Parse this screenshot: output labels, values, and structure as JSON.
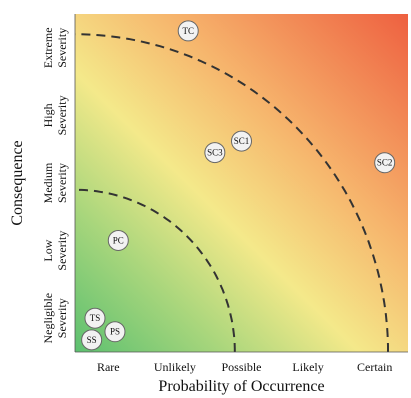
{
  "chart_data": {
    "type": "scatter",
    "title": "",
    "xlabel": "Probability of Occurrence",
    "ylabel": "Consequence",
    "xcategories": [
      "Rare",
      "Unlikely",
      "Possible",
      "Likely",
      "Certain"
    ],
    "ycategories": [
      [
        "Negligible",
        "Severity"
      ],
      [
        "Low",
        "Severity"
      ],
      [
        "Medium",
        "Severity"
      ],
      [
        "High",
        "Severity"
      ],
      [
        "Extreme",
        "Severity"
      ]
    ],
    "xlim": [
      0.5,
      5.5
    ],
    "ylim": [
      0.5,
      5.5
    ],
    "grid": false,
    "background": "risk-gradient",
    "colors": {
      "low_risk": "#5cc070",
      "medium_risk": "#f4e98a",
      "high_risk": "#ee6040",
      "boundary": "#333333"
    },
    "boundaries": [
      {
        "style": "dashed",
        "radius": 2.4
      },
      {
        "style": "dashed",
        "radius": 4.7
      }
    ],
    "points": [
      {
        "label": "TC",
        "x": 2.2,
        "y": 5.25
      },
      {
        "label": "SC1",
        "x": 3.0,
        "y": 3.62
      },
      {
        "label": "SC3",
        "x": 2.6,
        "y": 3.45
      },
      {
        "label": "SC2",
        "x": 5.15,
        "y": 3.3
      },
      {
        "label": "PC",
        "x": 1.15,
        "y": 2.15
      },
      {
        "label": "TS",
        "x": 0.8,
        "y": 1.0
      },
      {
        "label": "PS",
        "x": 1.1,
        "y": 0.8
      },
      {
        "label": "SS",
        "x": 0.75,
        "y": 0.68
      }
    ]
  }
}
